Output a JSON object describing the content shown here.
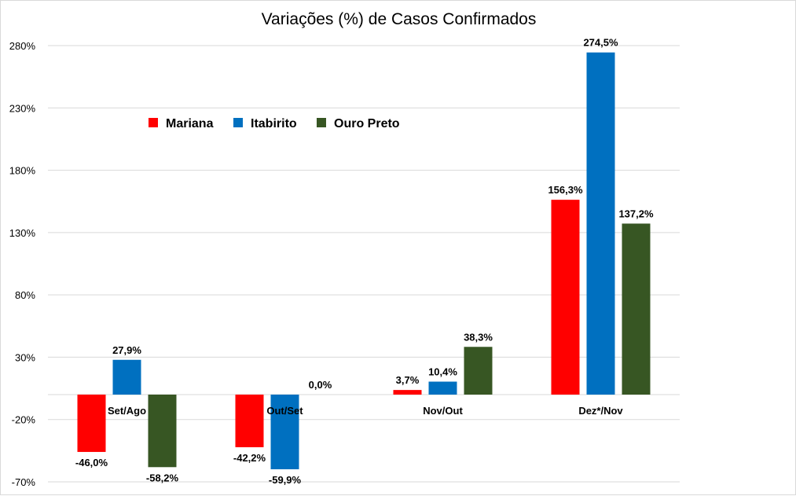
{
  "chart_data": {
    "type": "bar",
    "title": "Variações (%) de Casos Confirmados",
    "xlabel": "",
    "ylabel": "",
    "ylim": [
      -70,
      280
    ],
    "y_ticks": [
      280,
      230,
      180,
      130,
      80,
      30,
      -20,
      -70
    ],
    "y_tick_labels": [
      "280%",
      "230%",
      "180%",
      "130%",
      "80%",
      "30%",
      "-20%",
      "-70%"
    ],
    "categories": [
      "Set/Ago",
      "Out/Set",
      "Nov/Out",
      "Dez*/Nov"
    ],
    "series": [
      {
        "name": "Mariana",
        "color": "#ff0000",
        "values": [
          -46.0,
          -42.2,
          3.7,
          156.3
        ],
        "labels": [
          "-46,0%",
          "-42,2%",
          "3,7%",
          "156,3%"
        ]
      },
      {
        "name": "Itabirito",
        "color": "#0070c0",
        "values": [
          27.9,
          -59.9,
          10.4,
          274.5
        ],
        "labels": [
          "27,9%",
          "-59,9%",
          "10,4%",
          "274,5%"
        ]
      },
      {
        "name": "Ouro Preto",
        "color": "#375623",
        "values": [
          -58.2,
          0.0,
          38.3,
          137.2
        ],
        "labels": [
          "-58,2%",
          "0,0%",
          "38,3%",
          "137,2%"
        ]
      }
    ],
    "grid": true,
    "legend_position": "top-left inside plot"
  }
}
